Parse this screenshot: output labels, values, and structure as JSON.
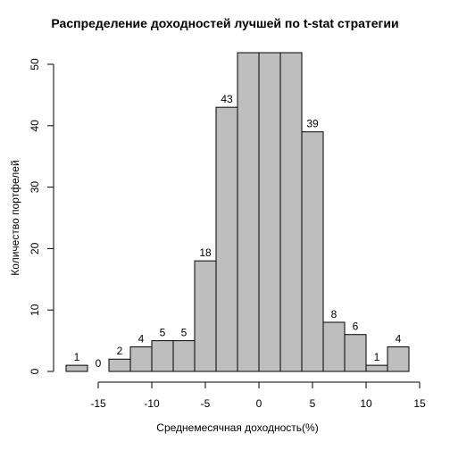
{
  "chart_data": {
    "type": "bar",
    "title": "Распределение доходностей лучшей по t-stat стратегии",
    "xlabel": "Среднемесячная доходность(%)",
    "ylabel": "Количество портфелей",
    "bins": [
      {
        "x0": -18,
        "x1": -16,
        "value": 1,
        "label": "1"
      },
      {
        "x0": -16,
        "x1": -14,
        "value": 0,
        "label": "0"
      },
      {
        "x0": -14,
        "x1": -12,
        "value": 2,
        "label": "2"
      },
      {
        "x0": -12,
        "x1": -10,
        "value": 4,
        "label": "4"
      },
      {
        "x0": -10,
        "x1": -8,
        "value": 5,
        "label": "5"
      },
      {
        "x0": -8,
        "x1": -6,
        "value": 5,
        "label": "5"
      },
      {
        "x0": -6,
        "x1": -4,
        "value": 18,
        "label": "18"
      },
      {
        "x0": -4,
        "x1": -2,
        "value": 43,
        "label": "43"
      },
      {
        "x0": -2,
        "x1": 0,
        "value": 52,
        "label": ""
      },
      {
        "x0": 0,
        "x1": 2,
        "value": 52,
        "label": ""
      },
      {
        "x0": 2,
        "x1": 4,
        "value": 52,
        "label": ""
      },
      {
        "x0": 4,
        "x1": 6,
        "value": 39,
        "label": "39"
      },
      {
        "x0": 6,
        "x1": 8,
        "value": 8,
        "label": "8"
      },
      {
        "x0": 8,
        "x1": 10,
        "value": 6,
        "label": "6"
      },
      {
        "x0": 10,
        "x1": 12,
        "value": 1,
        "label": "1"
      },
      {
        "x0": 12,
        "x1": 14,
        "value": 4,
        "label": "4"
      }
    ],
    "xlim": [
      -18,
      14
    ],
    "ylim": [
      0,
      50
    ],
    "xticks": [
      -15,
      -10,
      -5,
      0,
      5,
      10,
      15
    ],
    "yticks": [
      0,
      10,
      20,
      30,
      40,
      50
    ],
    "grid": false,
    "bar_color": "#bebebe",
    "edge_color": "#000000"
  }
}
